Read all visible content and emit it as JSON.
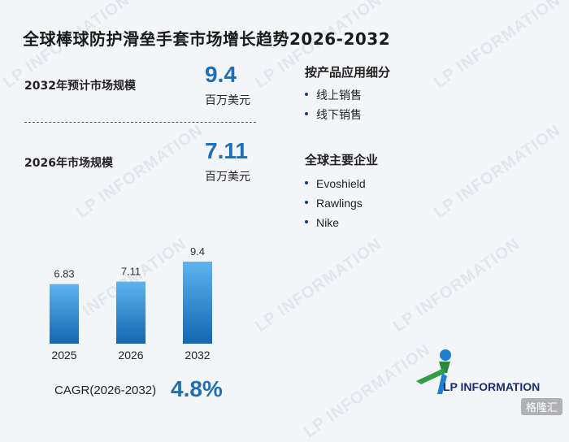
{
  "title": "全球棒球防护滑垒手套市场增长趋势2026-2032",
  "forecast": {
    "label": "2032年预计市场规模",
    "value": "9.4",
    "unit": "百万美元"
  },
  "current": {
    "label": "2026年市场规模",
    "value": "7.11",
    "unit": "百万美元"
  },
  "segments": {
    "title": "按产品应用细分",
    "items": [
      "线上销售",
      "线下销售"
    ]
  },
  "companies": {
    "title": "全球主要企业",
    "items": [
      "Evoshield",
      "Rawlings",
      "Nike"
    ]
  },
  "cagr": {
    "label": "CAGR(2026-2032)",
    "value": "4.8%"
  },
  "logo": {
    "text": "LP INFORMATION"
  },
  "watermark": "LP INFORMATION",
  "corner_badge": "格隆汇",
  "colors": {
    "accent": "#1e6fb4",
    "bar_top": "#5fb3ee",
    "bar_bottom": "#1466b0"
  },
  "chart_data": {
    "type": "bar",
    "categories": [
      "2025",
      "2026",
      "2032"
    ],
    "values": [
      6.83,
      7.11,
      9.4
    ],
    "value_labels": [
      "6.83",
      "7.11",
      "9.4"
    ],
    "ylim": [
      0,
      9.4
    ],
    "grid": false,
    "title": "",
    "xlabel": "",
    "ylabel": ""
  }
}
